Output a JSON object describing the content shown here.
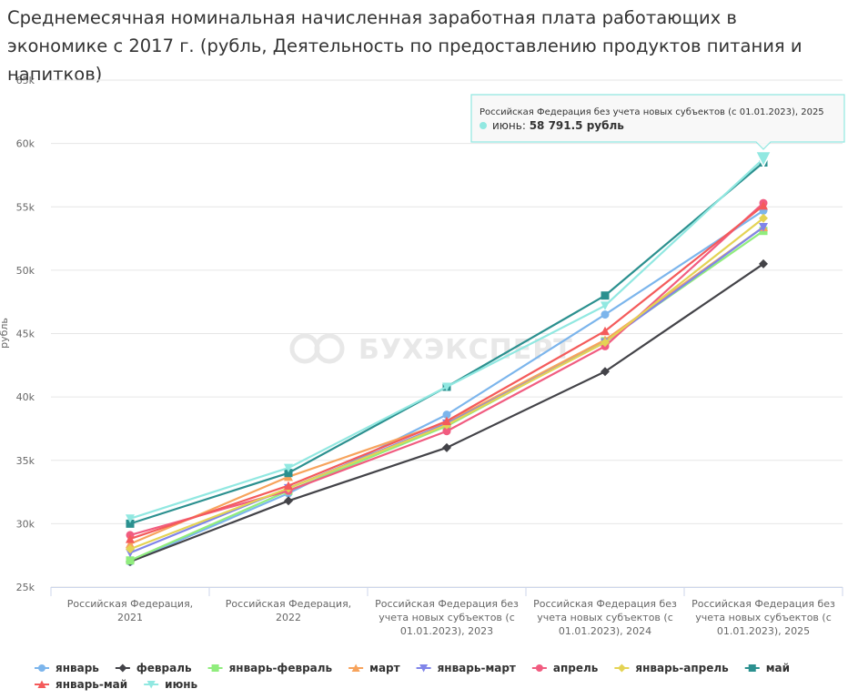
{
  "chart_data": {
    "type": "line",
    "title": "Среднемесячная номинальная начисленная заработная плата работающих в экономике с 2017 г. (рубль, Деятельность по предоставлению продуктов питания и напитков)",
    "ylabel": "рубль",
    "xlabel": "",
    "ylim": [
      25000,
      65000
    ],
    "yticks": [
      25000,
      30000,
      35000,
      40000,
      45000,
      50000,
      55000,
      60000,
      65000
    ],
    "ytick_labels": [
      "25k",
      "30k",
      "35k",
      "40k",
      "45k",
      "50k",
      "55k",
      "60k",
      "65k"
    ],
    "categories": [
      [
        "Российская Федерация,",
        "2021"
      ],
      [
        "Российская Федерация,",
        "2022"
      ],
      [
        "Российская Федерация без",
        "учета новых субъектов (с",
        "01.01.2023), 2023"
      ],
      [
        "Российская Федерация без",
        "учета новых субъектов (с",
        "01.01.2023), 2024"
      ],
      [
        "Российская Федерация без",
        "учета новых субъектов (с",
        "01.01.2023), 2025"
      ]
    ],
    "grid": true,
    "legend_position": "bottom",
    "series": [
      {
        "name": "январь",
        "color": "#7cb5ec",
        "marker": "circle",
        "values": [
          27000,
          32400,
          38600,
          46500,
          54700
        ]
      },
      {
        "name": "февраль",
        "color": "#434348",
        "marker": "diamond",
        "values": [
          27000,
          31800,
          36000,
          42000,
          50500
        ]
      },
      {
        "name": "январь-февраль",
        "color": "#90ed7d",
        "marker": "square",
        "values": [
          27100,
          32600,
          37700,
          44400,
          53100
        ]
      },
      {
        "name": "март",
        "color": "#f7a35c",
        "marker": "triangle",
        "values": [
          28400,
          33700,
          38000,
          44500,
          53400
        ]
      },
      {
        "name": "январь-март",
        "color": "#8085e9",
        "marker": "triangle-down",
        "values": [
          27700,
          32800,
          37900,
          44300,
          53400
        ]
      },
      {
        "name": "апрель",
        "color": "#f15c80",
        "marker": "circle",
        "values": [
          29100,
          32600,
          37300,
          44000,
          55300
        ]
      },
      {
        "name": "январь-апрель",
        "color": "#e4d354",
        "marker": "diamond",
        "values": [
          28000,
          32800,
          37800,
          44300,
          54100
        ]
      },
      {
        "name": "май",
        "color": "#2b908f",
        "marker": "square",
        "values": [
          30000,
          34000,
          40800,
          48000,
          58500
        ]
      },
      {
        "name": "январь-май",
        "color": "#f45b5b",
        "marker": "triangle",
        "values": [
          28800,
          33000,
          38100,
          45200,
          55100
        ]
      },
      {
        "name": "июнь",
        "color": "#91e8e1",
        "marker": "triangle-down",
        "values": [
          30400,
          34400,
          40800,
          47200,
          58791.5
        ]
      }
    ],
    "tooltip": {
      "header": "Российская Федерация без учета новых субъектов (с 01.01.2023), 2025",
      "series_label": "июнь: ",
      "value_label": "58 791.5 рубль",
      "series_index": 9,
      "point_index": 4
    },
    "watermark": "БУХЭКСПЕРТ"
  }
}
